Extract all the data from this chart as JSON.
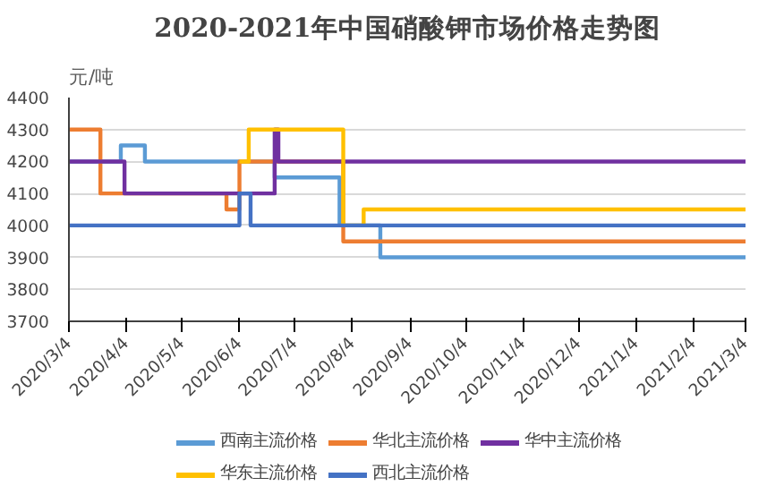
{
  "chart_data": {
    "type": "step",
    "title": "2020-2021年中国硝酸钾市场价格走势图",
    "ylabel": "元/吨",
    "xlim": [
      "2020-03-04",
      "2021-03-04"
    ],
    "xticks": [
      {
        "value": "2020-03-04",
        "label": "2020/3/4"
      },
      {
        "value": "2020-04-04",
        "label": "2020/4/4"
      },
      {
        "value": "2020-05-04",
        "label": "2020/5/4"
      },
      {
        "value": "2020-06-04",
        "label": "2020/6/4"
      },
      {
        "value": "2020-07-04",
        "label": "2020/7/4"
      },
      {
        "value": "2020-08-04",
        "label": "2020/8/4"
      },
      {
        "value": "2020-09-04",
        "label": "2020/9/4"
      },
      {
        "value": "2020-10-04",
        "label": "2020/10/4"
      },
      {
        "value": "2020-11-04",
        "label": "2020/11/4"
      },
      {
        "value": "2020-12-04",
        "label": "2020/12/4"
      },
      {
        "value": "2021-01-04",
        "label": "2021/1/4"
      },
      {
        "value": "2021-02-04",
        "label": "2021/2/4"
      },
      {
        "value": "2021-03-04",
        "label": "2021/3/4"
      }
    ],
    "ylim": [
      3700,
      4400
    ],
    "yticks": [
      3700,
      3800,
      3900,
      4000,
      4100,
      4200,
      4300,
      4400
    ],
    "grid": "y",
    "legend": "bottom",
    "series": [
      {
        "name": "西南主流价格",
        "color": "#5b9bd5",
        "x": [
          "2020-03-04",
          "2020-04-01",
          "2020-04-14",
          "2020-06-23",
          "2020-07-28",
          "2020-08-19",
          "2021-03-04"
        ],
        "values": [
          4200,
          4250,
          4200,
          4150,
          4000,
          3900,
          3900
        ]
      },
      {
        "name": "华北主流价格",
        "color": "#ed7d31",
        "x": [
          "2020-03-04",
          "2020-03-21",
          "2020-05-28",
          "2020-06-04",
          "2020-07-30",
          "2021-03-04"
        ],
        "values": [
          4300,
          4100,
          4050,
          4200,
          3950,
          3950
        ]
      },
      {
        "name": "华中主流价格",
        "color": "#7030a0",
        "x": [
          "2020-03-04",
          "2020-04-03",
          "2020-06-23",
          "2020-06-25",
          "2021-03-04"
        ],
        "values": [
          4200,
          4100,
          4300,
          4200,
          4200
        ]
      },
      {
        "name": "华东主流价格",
        "color": "#ffc000",
        "x": [
          "2020-06-04",
          "2020-06-09",
          "2020-07-30",
          "2020-08-10",
          "2021-03-04"
        ],
        "values": [
          4200,
          4300,
          4000,
          4050,
          4050
        ]
      },
      {
        "name": "西北主流价格",
        "color": "#4472c4",
        "x": [
          "2020-03-04",
          "2020-06-04",
          "2020-06-10",
          "2021-03-04"
        ],
        "values": [
          4000,
          4100,
          4000,
          4000
        ]
      }
    ]
  }
}
